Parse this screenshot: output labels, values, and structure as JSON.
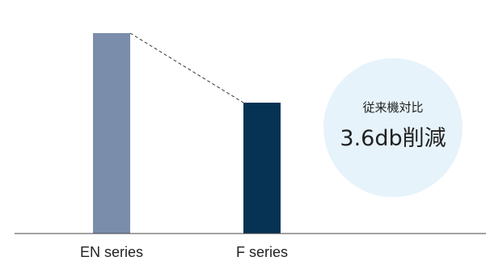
{
  "chart_data": {
    "type": "bar",
    "categories": [
      "EN series",
      "F series"
    ],
    "values": [
      100,
      65.3
    ],
    "ylim": [
      0,
      100
    ],
    "grid": false,
    "colors": [
      "#7A8DAB",
      "#063354"
    ],
    "connector": "dashed line between bar tops"
  },
  "badge": {
    "line1": "従来機対比",
    "line2": "3.6db削減",
    "color": "#E6F3FB"
  }
}
